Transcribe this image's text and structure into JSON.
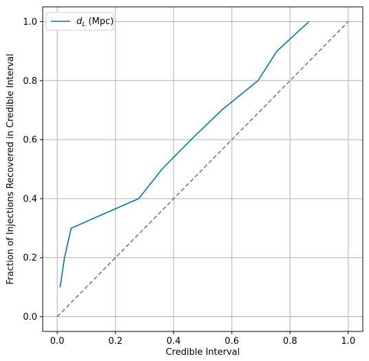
{
  "chart_data": {
    "type": "line",
    "xlabel": "Credible Interval",
    "ylabel": "Fraction of Injections Recovered in Credible Interval",
    "xlim": [
      -0.05,
      1.05
    ],
    "ylim": [
      -0.05,
      1.05
    ],
    "xticks": [
      "0.0",
      "0.2",
      "0.4",
      "0.6",
      "0.8",
      "1.0"
    ],
    "yticks": [
      "0.0",
      "0.2",
      "0.4",
      "0.6",
      "0.8",
      "1.0"
    ],
    "grid": true,
    "legend_position": "top-left",
    "series": [
      {
        "name": "d_L (Mpc)",
        "legend_main": "d",
        "legend_sub": "L",
        "legend_rest": " (Mpc)",
        "color": "#0072b2",
        "style": "solid",
        "x": [
          0.01,
          0.025,
          0.048,
          0.28,
          0.36,
          0.46,
          0.565,
          0.69,
          0.755,
          0.865
        ],
        "y": [
          0.1,
          0.2,
          0.3,
          0.4,
          0.5,
          0.6,
          0.7,
          0.8,
          0.9,
          1.0
        ]
      },
      {
        "name": "",
        "color": "#777777",
        "style": "dashed",
        "x": [
          0.0,
          1.0
        ],
        "y": [
          0.0,
          1.0
        ]
      }
    ]
  }
}
